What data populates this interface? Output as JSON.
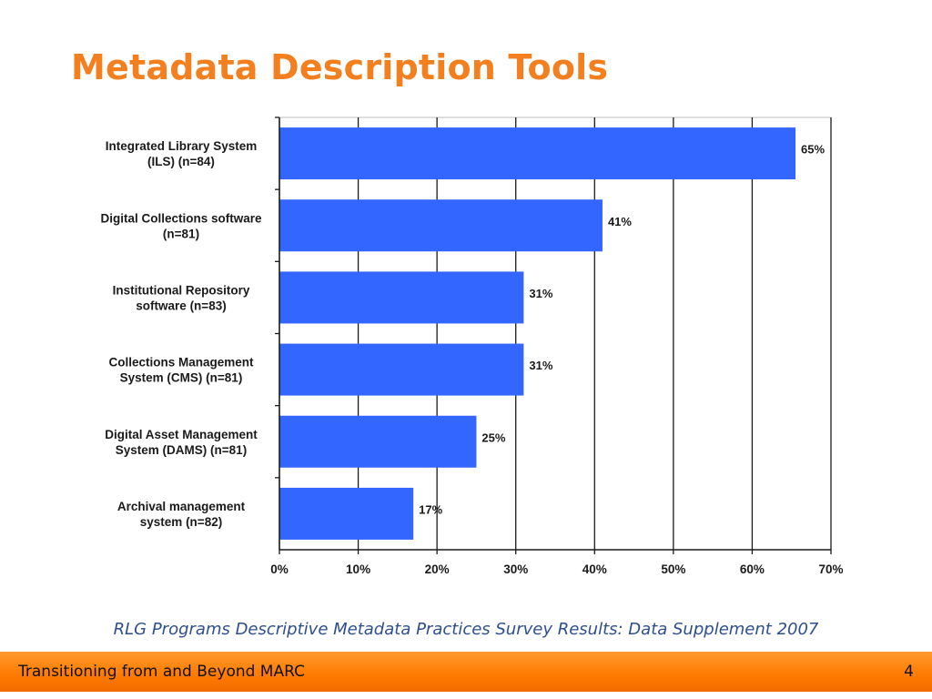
{
  "slide": {
    "title": "Metadata Description Tools",
    "source": "RLG Programs Descriptive Metadata Practices Survey Results: Data Supplement 2007"
  },
  "footer": {
    "text": "Transitioning from and Beyond MARC",
    "page_number": "4"
  },
  "colors": {
    "title": "#f47f1f",
    "bar": "#3366ff",
    "footer_bar": "#ff8000",
    "caption": "#2e4f8f"
  },
  "chart_data": {
    "type": "bar",
    "orientation": "horizontal",
    "categories": [
      [
        "Integrated Library System",
        "(ILS) (n=84)"
      ],
      [
        "Digital Collections software",
        "(n=81)"
      ],
      [
        "Institutional Repository",
        "software (n=83)"
      ],
      [
        "Collections Management",
        "System (CMS) (n=81)"
      ],
      [
        "Digital Asset Management",
        "System (DAMS) (n=81)"
      ],
      [
        "Archival management",
        "system (n=82)"
      ]
    ],
    "values": [
      65.5,
      41,
      31,
      31,
      25,
      17
    ],
    "data_labels": [
      "65%",
      "41%",
      "31%",
      "31%",
      "25%",
      "17%"
    ],
    "xlim": [
      0,
      70
    ],
    "xticks": [
      0,
      10,
      20,
      30,
      40,
      50,
      60,
      70
    ],
    "xtick_labels": [
      "0%",
      "10%",
      "20%",
      "30%",
      "40%",
      "50%",
      "60%",
      "70%"
    ],
    "grid": true,
    "legend": "none"
  }
}
